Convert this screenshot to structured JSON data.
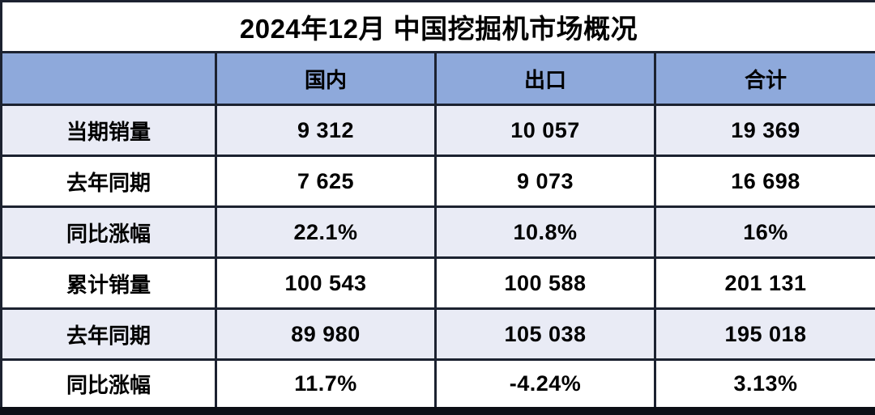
{
  "chart_data": {
    "type": "table",
    "title": "2024年12月 中国挖掘机市场概况",
    "columns": [
      "",
      "国内",
      "出口",
      "合计"
    ],
    "rows": [
      [
        "当期销量",
        "9 312",
        "10 057",
        "19 369"
      ],
      [
        "去年同期",
        "7 625",
        "9 073",
        "16 698"
      ],
      [
        "同比涨幅",
        "22.1%",
        "10.8%",
        "16%"
      ],
      [
        "累计销量",
        "100 543",
        "100 588",
        "201 131"
      ],
      [
        "去年同期",
        "89 980",
        "105 038",
        "195 018"
      ],
      [
        "同比涨幅",
        "11.7%",
        "-4.24%",
        "3.13%"
      ]
    ],
    "layout_hints": {
      "striped_row_indices": [
        0,
        2,
        4
      ],
      "title_position": "top-merged-cell",
      "grid": true
    }
  },
  "colors": {
    "header_fill": "#8EA9DB",
    "striped_row_fill": "#E9EBF5",
    "plain_row_fill": "#FFFFFF",
    "border": "#1C2230",
    "outer_border": "#0C0F16",
    "text": "#000000"
  }
}
